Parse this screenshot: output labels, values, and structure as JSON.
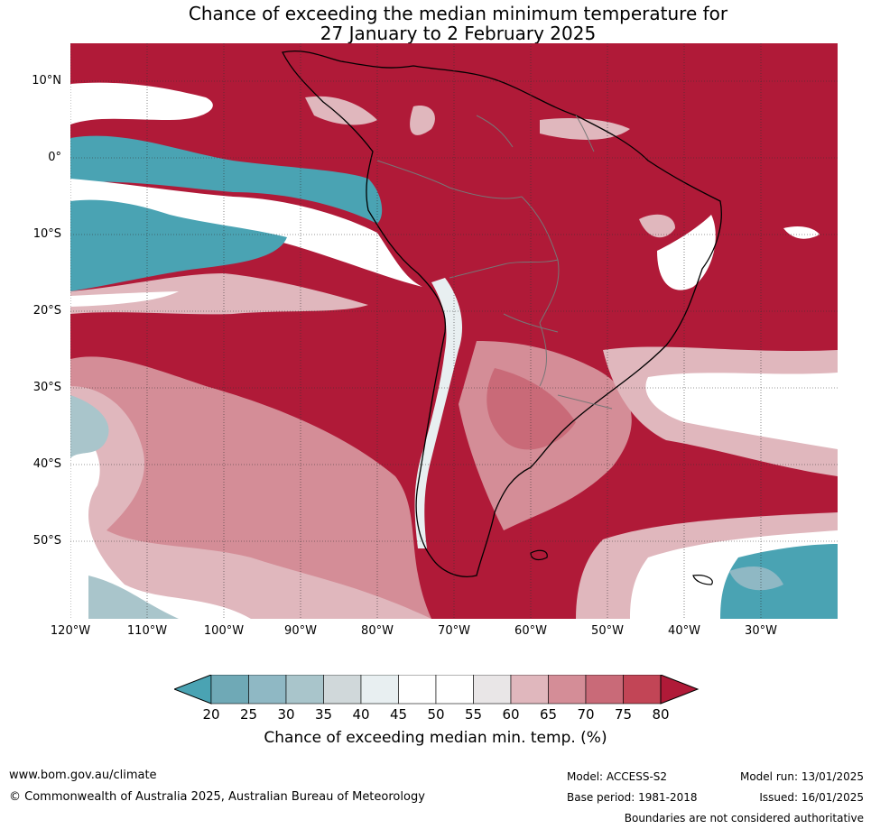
{
  "title": {
    "line1": "Chance of exceeding the median minimum temperature for",
    "line2": "27 January to 2 February 2025"
  },
  "map": {
    "lat_labels": [
      "10°N",
      "0°",
      "10°S",
      "20°S",
      "30°S",
      "40°S",
      "50°S"
    ],
    "lon_labels": [
      "120°W",
      "110°W",
      "100°W",
      "90°W",
      "80°W",
      "70°W",
      "60°W",
      "50°W",
      "40°W",
      "30°W"
    ],
    "extent": {
      "lon_min": -121,
      "lon_max": -21,
      "lat_min": -60,
      "lat_max": 15
    },
    "grid": true,
    "dominant_category": "80+"
  },
  "colorbar": {
    "title": "Chance of exceeding median min. temp. (%)",
    "ticks": [
      "20",
      "25",
      "30",
      "35",
      "40",
      "45",
      "50",
      "55",
      "60",
      "65",
      "70",
      "75",
      "80"
    ],
    "colors": [
      "#4aa3b3",
      "#6fa9b6",
      "#8fb8c4",
      "#a9c5cb",
      "#d0d8da",
      "#e8eff1",
      "#ffffff",
      "#ffffff",
      "#e9e6e7",
      "#e0b7bd",
      "#d48d97",
      "#c96a78",
      "#c24556",
      "#b01a38"
    ]
  },
  "footer": {
    "website": "www.bom.gov.au/climate",
    "copyright": "© Commonwealth of Australia 2025, Australian Bureau of Meteorology",
    "model": "Model: ACCESS-S2",
    "base_period": "Base period: 1981-2018",
    "model_run": "Model run: 13/01/2025",
    "issued": "Issued: 16/01/2025",
    "disclaimer": "Boundaries are not considered authoritative"
  }
}
